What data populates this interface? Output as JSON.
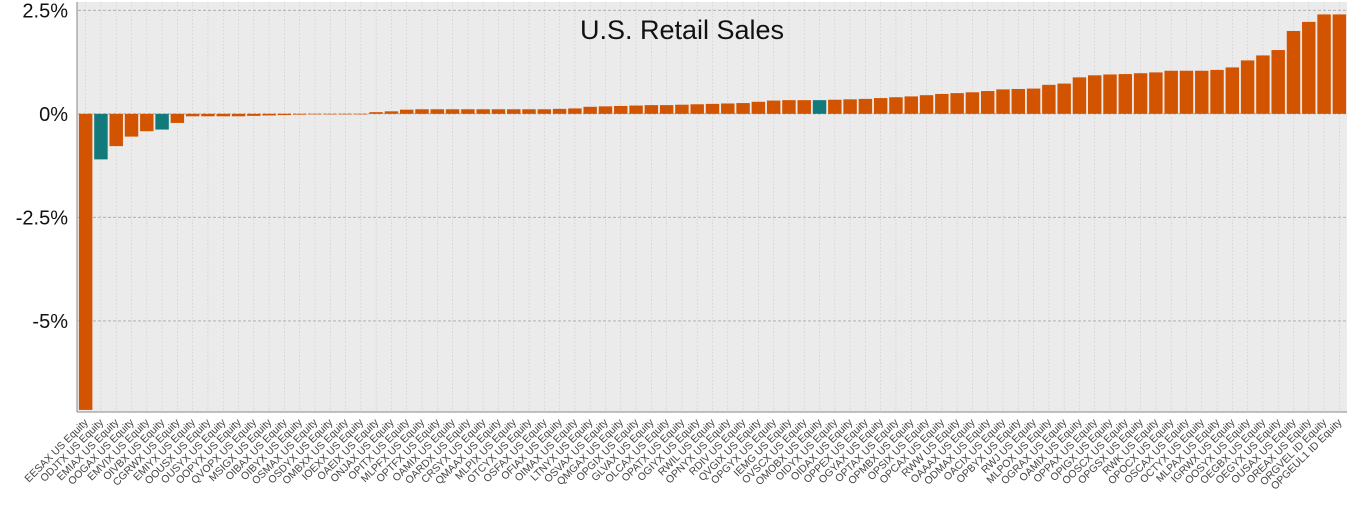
{
  "chart_data": {
    "type": "bar",
    "title": "U.S. Retail Sales",
    "xlabel": "",
    "ylabel": "",
    "ylim": [
      -7.2,
      2.7
    ],
    "yticks": [
      2.5,
      0,
      -2.5,
      -5
    ],
    "ytick_labels": [
      "2.5%",
      "0%",
      "-2.5%",
      "-5%"
    ],
    "grid": true,
    "legend": "none",
    "colors": {
      "default": "#d35400",
      "highlight": "#127a7a",
      "plot_bg": "#ebebeb",
      "axis": "#888888",
      "grid": "#b5b5b5"
    },
    "categories": [
      "EESAX  US Equity",
      "ODJTX US Equity",
      "EMIAX US Equity",
      "OOGAX US Equity",
      "EMVIX US Equity",
      "OIVBX US Equity",
      "CGRWX US Equity",
      "EMIYX US Equity",
      "OOUSX US Equity",
      "OUSYX US Equity",
      "OOPYX US Equity",
      "QVOPX US Equity",
      "MSIGX US Equity",
      "OIBAX US Equity",
      "OIBYX US Equity",
      "OSMAX US Equity",
      "OSDYX US Equity",
      "OMBXX US Equity",
      "IOEXX US Equity",
      "OAEIX US Equity",
      "ONJAX US Equity",
      "OPITX US Equity",
      "MLPFX US Equity",
      "OPTFX US Equity",
      "OAMIX US Equity",
      "OARDX US Equity",
      "CRSYX US Equity",
      "QMAAX US Equity",
      "MLPIX US Equity",
      "OTCYX US Equity",
      "OSFAX US Equity",
      "OFIAX US Equity",
      "OIMAX US Equity",
      "LTNYX US Equity",
      "OSVAX US Equity",
      "QMGAX US Equity",
      "OPGIX US Equity",
      "GLVAX US Equity",
      "OLCAX US Equity",
      "OPATX US Equity",
      "OGIYX US Equity",
      "RWIL US Equity",
      "OPNYX US Equity",
      "RDIV US Equity",
      "QVGIX US Equity",
      "OPGYX US Equity",
      "IEMG US Equity",
      "OVSCX US Equity",
      "OMOBX US Equity",
      "OIDYX US Equity",
      "OIDAX US Equity",
      "OPPEX US Equity",
      "OGYAX US Equity",
      "OPTAX US Equity",
      "OPMBX US Equity",
      "OPSIX US Equity",
      "OPCAX US Equity",
      "RWW US Equity",
      "OAAAX US Equity",
      "ODMAX US Equity",
      "OACIX US Equity",
      "OPBYX US Equity",
      "RWJ US Equity",
      "MLPOX US Equity",
      "OGRAX US Equity",
      "OAMIX US Equity",
      "OPPAX US Equity",
      "OPIGX US Equity",
      "OOSCX US Equity",
      "OPGSX US Equity",
      "RWK US Equity",
      "OPOCX US Equity",
      "OSCAX US Equity",
      "OCTYX US Equity",
      "MLPAX US Equity",
      "IGRWX US Equity",
      "OOSYX US Equity",
      "OEGBX US Equity",
      "OEGYX US Equity",
      "OUSAX US Equity",
      "OREAX US Equity",
      "ORGVEL ID Equity",
      "OPGEUL1 ID Equity"
    ],
    "values": [
      -7.15,
      -1.1,
      -0.78,
      -0.55,
      -0.42,
      -0.38,
      -0.22,
      -0.06,
      -0.06,
      -0.06,
      -0.06,
      -0.05,
      -0.04,
      -0.03,
      -0.02,
      -0.01,
      -0.01,
      -0.01,
      -0.01,
      0.04,
      0.06,
      0.1,
      0.11,
      0.11,
      0.11,
      0.11,
      0.11,
      0.11,
      0.11,
      0.11,
      0.11,
      0.12,
      0.13,
      0.17,
      0.18,
      0.19,
      0.2,
      0.21,
      0.21,
      0.22,
      0.23,
      0.24,
      0.25,
      0.26,
      0.29,
      0.32,
      0.33,
      0.33,
      0.33,
      0.34,
      0.35,
      0.36,
      0.38,
      0.4,
      0.42,
      0.45,
      0.48,
      0.5,
      0.52,
      0.55,
      0.59,
      0.6,
      0.61,
      0.7,
      0.73,
      0.88,
      0.93,
      0.95,
      0.96,
      0.98,
      1.0,
      1.04,
      1.04,
      1.04,
      1.06,
      1.12,
      1.29,
      1.41,
      1.54,
      2.0,
      2.22,
      2.4,
      2.4
    ],
    "highlight_indices": [
      1,
      5,
      48
    ]
  }
}
